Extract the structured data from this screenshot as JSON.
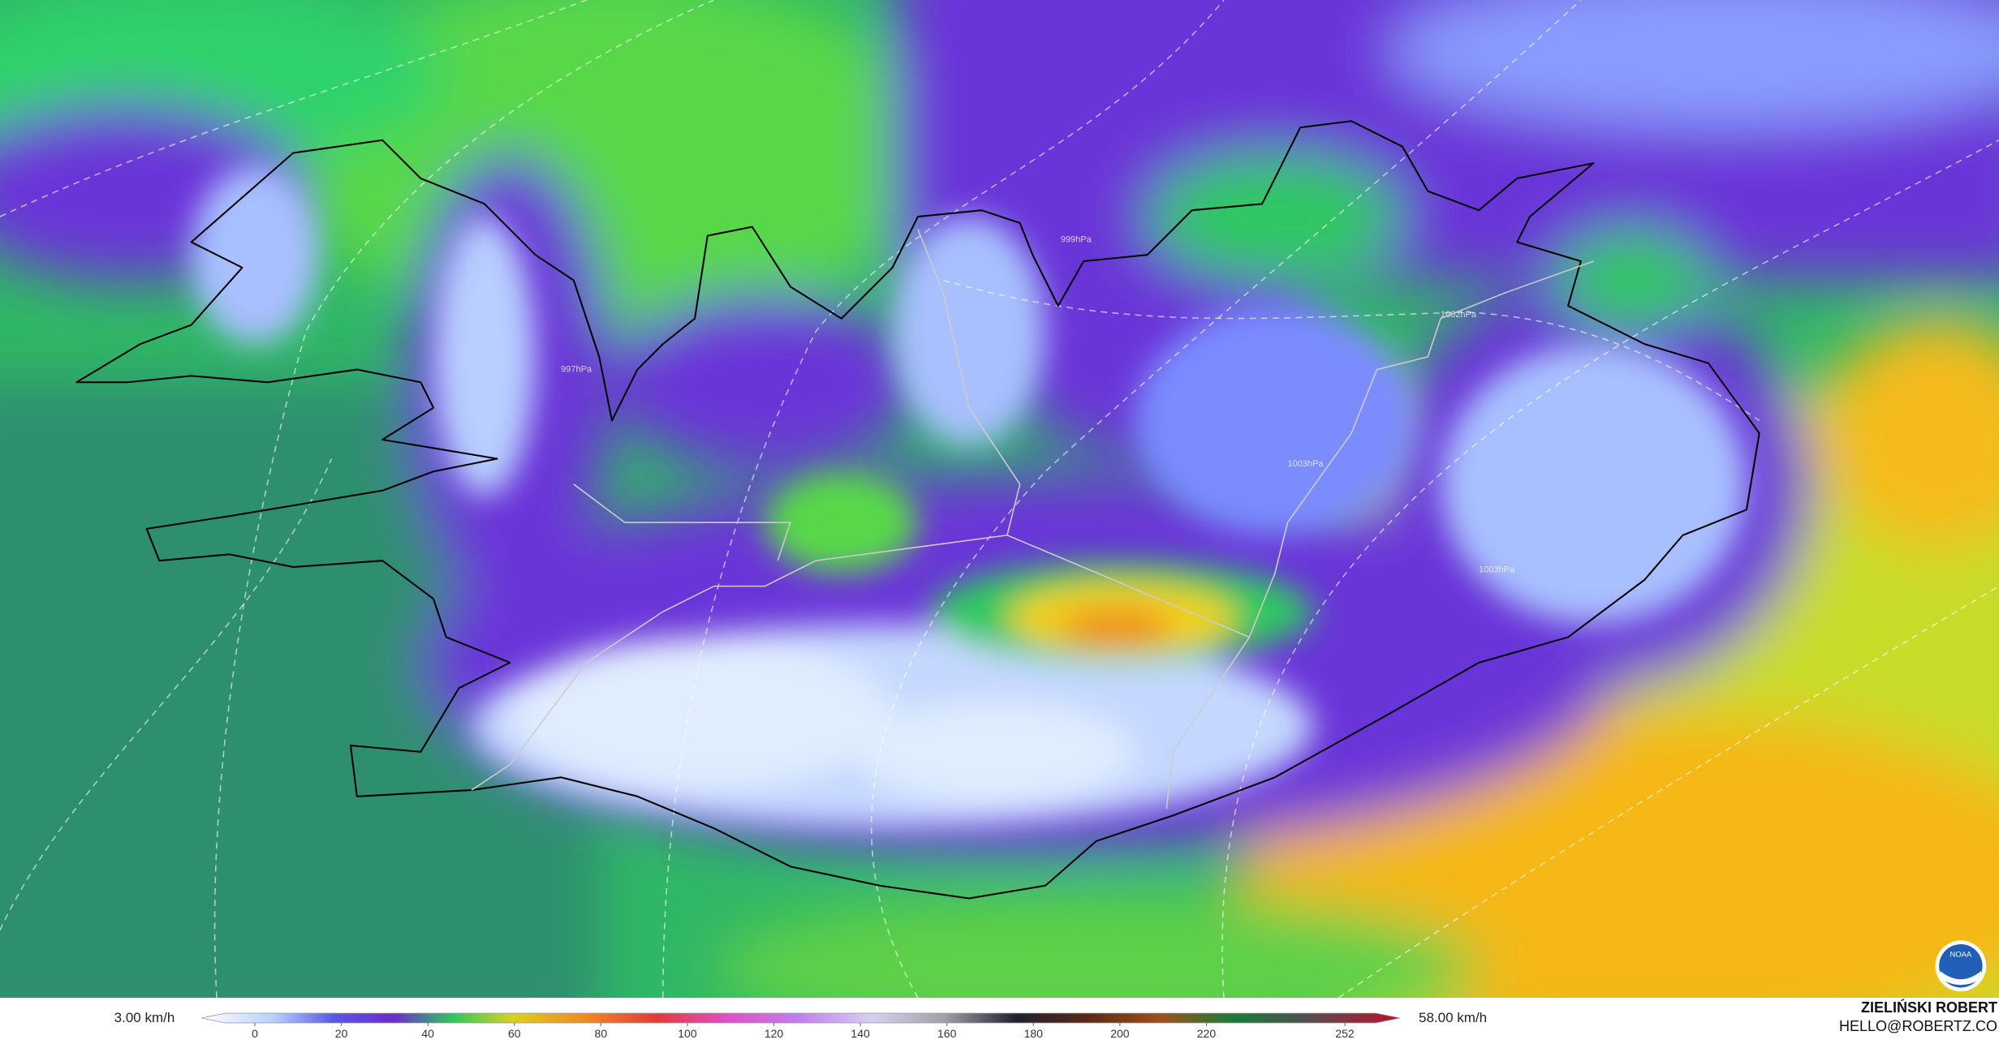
{
  "map": {
    "contour_labels": [
      "999hPa",
      "1002hPa",
      "1003hPa",
      "1003hPa",
      "997hPa"
    ],
    "logo": "NOAA",
    "colorbar": {
      "min_label": "3.00 km/h",
      "max_label": "58.00 km/h",
      "ticks": [
        0,
        20,
        40,
        60,
        80,
        100,
        120,
        140,
        160,
        180,
        200,
        220,
        252
      ]
    },
    "credit": {
      "name": "ZIELIŃSKI ROBERT",
      "contact": "HELLO@ROBERTZ.CO"
    }
  }
}
